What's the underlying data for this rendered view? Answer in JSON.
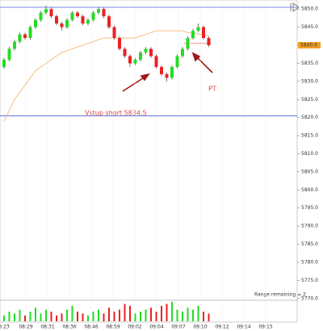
{
  "chart_data": {
    "type": "candlestick",
    "x_labels": [
      "8:23",
      "08:29",
      "08:31",
      "08:36",
      "08:46",
      "08:59",
      "09:02",
      "09:04",
      "09:07",
      "09:10",
      "09:12",
      "09:14",
      "09:15"
    ],
    "open": [
      5834,
      5836,
      5839,
      5841,
      5843,
      5842,
      5845,
      5847,
      5849,
      5850,
      5848,
      5846,
      5845,
      5847,
      5849,
      5848,
      5846,
      5847,
      5849,
      5850,
      5848,
      5845,
      5842,
      5839,
      5837,
      5835,
      5836,
      5838,
      5839,
      5837,
      5834,
      5832,
      5831,
      5834,
      5837,
      5839,
      5842,
      5844,
      5845,
      5842
    ],
    "high": [
      5836.5,
      5839.5,
      5841.5,
      5843.5,
      5843.5,
      5845.5,
      5847.5,
      5849.5,
      5851,
      5850.5,
      5848.5,
      5846.5,
      5847.5,
      5849.5,
      5849.5,
      5848.5,
      5847.5,
      5849.5,
      5850.5,
      5850.5,
      5848.5,
      5845.5,
      5842.5,
      5839.5,
      5837.5,
      5836.5,
      5838.5,
      5839.5,
      5839.5,
      5837.5,
      5834.5,
      5832.5,
      5834.5,
      5837.5,
      5839.5,
      5842.5,
      5844.5,
      5846,
      5845.5,
      5842.5
    ],
    "low": [
      5833.5,
      5835.5,
      5838.5,
      5840.5,
      5841.5,
      5841.5,
      5844.5,
      5846.5,
      5848.5,
      5847.5,
      5845.5,
      5844,
      5844.5,
      5846.5,
      5847.5,
      5845.5,
      5845.5,
      5846.5,
      5848.5,
      5847.5,
      5844.5,
      5841.5,
      5838.5,
      5836.5,
      5834,
      5834.5,
      5835.5,
      5837.5,
      5836.5,
      5833.5,
      5831.5,
      5830,
      5830.5,
      5833.5,
      5836.5,
      5838.5,
      5841.5,
      5843.5,
      5841.5,
      5839.5
    ],
    "close": [
      5836,
      5839,
      5841,
      5843,
      5842,
      5845,
      5847,
      5849,
      5850,
      5848,
      5846,
      5845,
      5847,
      5849,
      5848,
      5846,
      5847,
      5849,
      5850,
      5848,
      5845,
      5842,
      5839,
      5837,
      5835,
      5836,
      5838,
      5839,
      5837,
      5834,
      5832,
      5831,
      5834,
      5837,
      5839,
      5842,
      5844,
      5845,
      5842,
      5840
    ],
    "moving_average": {
      "color": "#f5b060",
      "values": [
        5819,
        5822,
        5825,
        5827,
        5829,
        5831,
        5833,
        5834,
        5835,
        5836,
        5837,
        5838,
        5838.5,
        5839,
        5839.5,
        5840,
        5840.5,
        5841,
        5841.5,
        5842,
        5842,
        5842,
        5842,
        5842,
        5842,
        5842,
        5842.5,
        5843,
        5843.5,
        5844,
        5844,
        5844,
        5844,
        5844,
        5844,
        5843.5,
        5843.5,
        5843,
        5843,
        5842.5
      ]
    },
    "volume": [
      3,
      5,
      4,
      6,
      3,
      5,
      7,
      4,
      6,
      5,
      3,
      4,
      6,
      8,
      5,
      4,
      3,
      5,
      6,
      4,
      7,
      5,
      6,
      9,
      8,
      4,
      5,
      6,
      7,
      5,
      8,
      9,
      10,
      6,
      5,
      7,
      6,
      8,
      5,
      4
    ],
    "up_color": "#22dd22",
    "down_color": "#ee2020",
    "ylim": [
      5769.5,
      5852.5
    ],
    "yticks": [
      {
        "value": 5770,
        "label": "5770.0"
      },
      {
        "value": 5775,
        "label": "5775.0"
      },
      {
        "value": 5780,
        "label": "5780.0"
      },
      {
        "value": 5785,
        "label": "5785.0"
      },
      {
        "value": 5790,
        "label": "5790.0"
      },
      {
        "value": 5795,
        "label": "5795.0"
      },
      {
        "value": 5800,
        "label": "5800.0"
      },
      {
        "value": 5805,
        "label": "5805.0"
      },
      {
        "value": 5810,
        "label": "5810.0"
      },
      {
        "value": 5815,
        "label": "5815.0"
      },
      {
        "value": 5820,
        "label": "5820.0"
      },
      {
        "value": 5825,
        "label": "5825.0"
      },
      {
        "value": 5830,
        "label": "5830.0"
      },
      {
        "value": 5835,
        "label": "5835.0"
      },
      {
        "value": 5840,
        "label": "5840.0"
      },
      {
        "value": 5845,
        "label": "5845.0"
      },
      {
        "value": 5850,
        "label": "5850.0"
      }
    ],
    "levels": [
      5850.5,
      5820.5
    ],
    "target_level": 5840.5,
    "last_price": {
      "value": 5840,
      "label": "5840.0"
    },
    "annotations": [
      "Vstup short 5834,5",
      "PT"
    ],
    "footer": "Range remaining = 2"
  }
}
